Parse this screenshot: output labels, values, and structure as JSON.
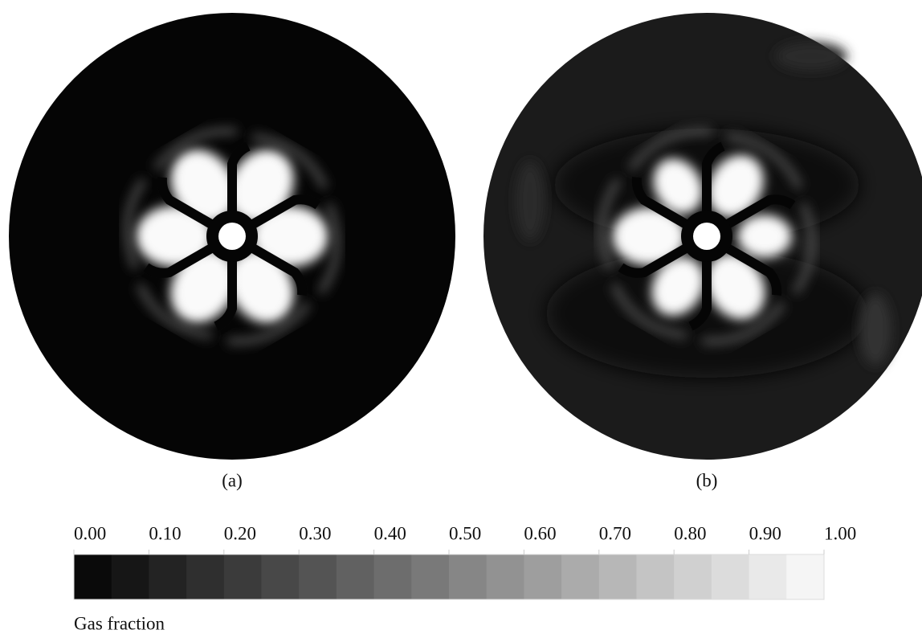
{
  "panels": [
    {
      "label": "(a)"
    },
    {
      "label": "(b)"
    }
  ],
  "colorbar": {
    "title": "Gas fraction",
    "lim": [
      0,
      1
    ],
    "ticks": [
      {
        "value": 0,
        "label": "0.00"
      },
      {
        "value": 0.1,
        "label": "0.10"
      },
      {
        "value": 0.2,
        "label": "0.20"
      },
      {
        "value": 0.3,
        "label": "0.30"
      },
      {
        "value": 0.4,
        "label": "0.40"
      },
      {
        "value": 0.5,
        "label": "0.50"
      },
      {
        "value": 0.6,
        "label": "0.60"
      },
      {
        "value": 0.7,
        "label": "0.70"
      },
      {
        "value": 0.8,
        "label": "0.80"
      },
      {
        "value": 0.9,
        "label": "0.90"
      },
      {
        "value": 1,
        "label": "1.00"
      }
    ]
  }
}
